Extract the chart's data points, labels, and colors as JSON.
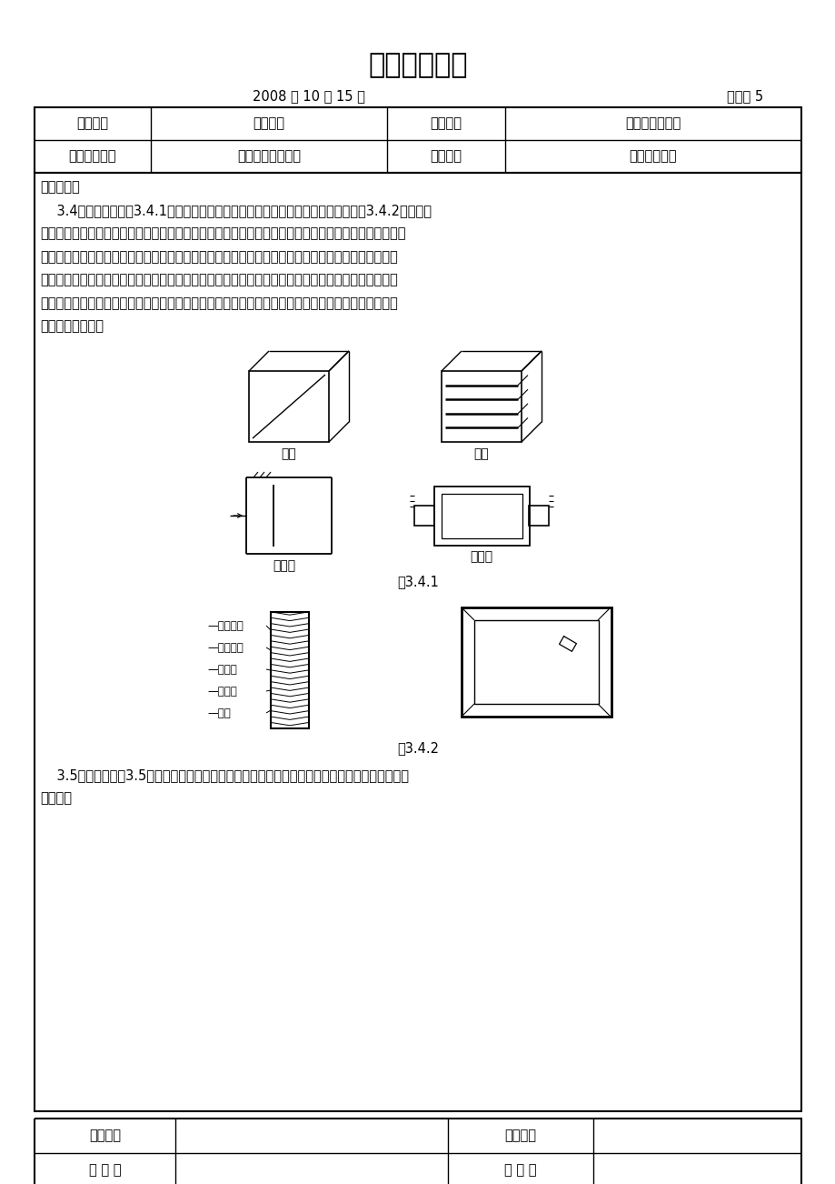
{
  "title": "技术交底记录",
  "date": "2008 年 10 月 15 日",
  "shi_guan": "施管表 5",
  "row1": [
    "工程名称",
    "节能大厦",
    "分部工程",
    "通风与空调工程"
  ],
  "row2": [
    "分项工程名称",
    "消声器制作与安装",
    "施工单位",
    "中天宝业集团"
  ],
  "jiao_di_label": "交底内容：",
  "para1_lines": [
    "    3.4阻性消声器（图3.4.1）在加工时，内部尺寸不能随意改变。其阻性消声片（图3.4.2）是用木",
    "筋制成木框（如设计要求用金属结构，则按设计要求加工），内填超细玻璃棉等吸声材料，外包玻璃布等",
    "覆面材料制成。在填充吸声材料时，应按设计的容重，厚度等要求铺放均匀，覆面层不得破损。装钉吸",
    "声片时，与气流接触部分均用漆泡钉，其余部分用鞋钉装钉。钉泡钉时，在泡钉处加一层垫片，可减少",
    "破损现象。对于容积较大的吸声片，为了防止因消声器安装或移动而造成吸声材料下沉，可在容腔内装",
    "设适当的托挡板。"
  ],
  "fig341_label": "图3.4.1",
  "fig342_label": "图3.4.2",
  "fig_left_labels": [
    "消声材料",
    "覆面材料",
    "托挡板",
    "保护网",
    "外框"
  ],
  "tube_label": "管式",
  "piece_label": "片式",
  "maze_label": "迷宫式",
  "chamber_label": "单室式",
  "para2_lines": [
    "    3.5抗性消声器图3.5是利用管道内截面突变，起到消声作用。加工制作时，不能任意改变膨胀室",
    "的尺寸。"
  ],
  "bottom_row1_col1": "交底单位",
  "bottom_row1_col3": "接收单位",
  "bottom_row2_col1": "交 底 人",
  "bottom_row2_col3": "接 收 人",
  "bg_color": "#ffffff",
  "text_color": "#000000"
}
